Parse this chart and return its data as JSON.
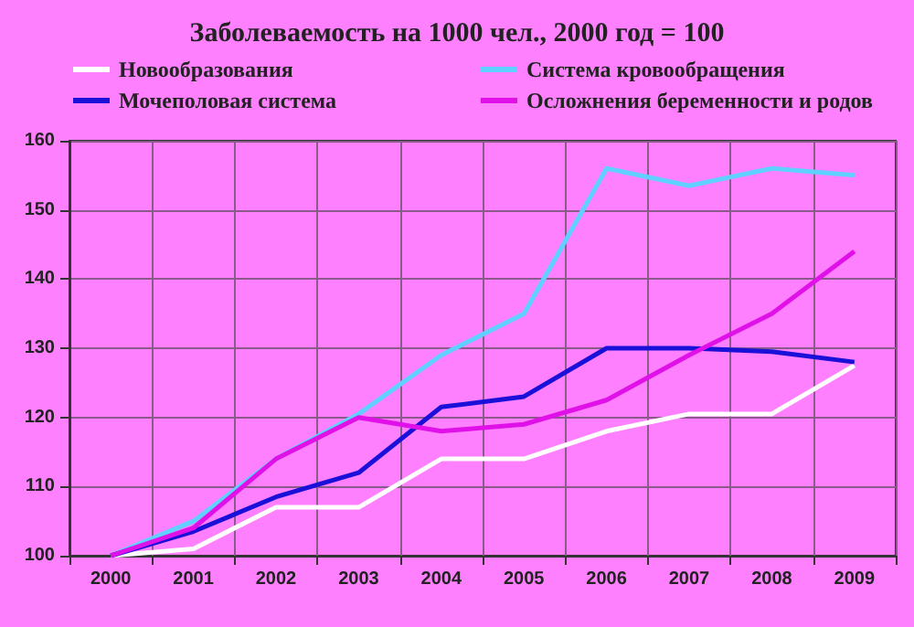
{
  "chart_data": {
    "type": "line",
    "title": "Заболеваемость на 1000 чел., 2000 год = 100",
    "categories": [
      "2000",
      "2001",
      "2002",
      "2003",
      "2004",
      "2005",
      "2006",
      "2007",
      "2008",
      "2009"
    ],
    "series": [
      {
        "name": "Новообразования",
        "color": "#ffffff",
        "values": [
          100,
          101,
          107,
          107,
          114,
          114,
          118,
          120.5,
          120.5,
          127.5
        ]
      },
      {
        "name": "Система кровообращения",
        "color": "#5fd0ff",
        "values": [
          100,
          105,
          114,
          120.5,
          129,
          135,
          156,
          153.5,
          156,
          155
        ]
      },
      {
        "name": "Мочеполовая система",
        "color": "#1a10d8",
        "values": [
          100,
          103.5,
          108.5,
          112,
          121.5,
          123,
          130,
          130,
          129.5,
          128
        ]
      },
      {
        "name": "Осложнения беременности и родов",
        "color": "#e010e8",
        "values": [
          100,
          104,
          114,
          120,
          118,
          119,
          122.5,
          129,
          135,
          144
        ]
      }
    ],
    "ylim": [
      100,
      160
    ],
    "yticks": [
      100,
      110,
      120,
      130,
      140,
      150,
      160
    ],
    "grid": true,
    "legend": "top",
    "marker": "none",
    "line_style": "solid"
  }
}
